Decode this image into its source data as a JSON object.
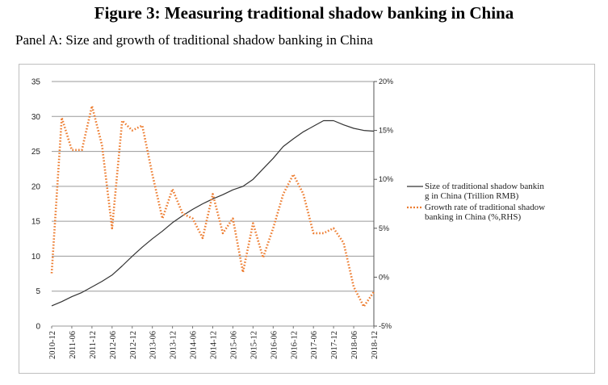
{
  "figure_title": "Figure 3: Measuring traditional shadow banking in China",
  "panel_title": "Panel A: Size and growth of traditional shadow banking in China",
  "chart_data": {
    "type": "line",
    "x": [
      "2010-12",
      "2011-03",
      "2011-06",
      "2011-09",
      "2011-12",
      "2012-03",
      "2012-06",
      "2012-09",
      "2012-12",
      "2013-03",
      "2013-06",
      "2013-09",
      "2013-12",
      "2014-03",
      "2014-06",
      "2014-09",
      "2014-12",
      "2015-03",
      "2015-06",
      "2015-09",
      "2015-12",
      "2016-03",
      "2016-06",
      "2016-09",
      "2016-12",
      "2017-03",
      "2017-06",
      "2017-09",
      "2017-12",
      "2018-03",
      "2018-06",
      "2018-09",
      "2018-12"
    ],
    "x_tick_labels": [
      "2010-12",
      "2011-06",
      "2011-12",
      "2012-06",
      "2012-12",
      "2013-06",
      "2013-12",
      "2014-06",
      "2014-12",
      "2015-06",
      "2015-12",
      "2016-06",
      "2016-12",
      "2017-06",
      "2017-12",
      "2018-06",
      "2018-12"
    ],
    "series": [
      {
        "name": "Size of traditional shadow bankin g in China (Trillion RMB)",
        "axis": "left",
        "color": "#333333",
        "style": "solid",
        "values": [
          2.9,
          3.5,
          4.2,
          4.8,
          5.6,
          6.4,
          7.3,
          8.6,
          10.0,
          11.3,
          12.5,
          13.6,
          14.8,
          15.8,
          16.7,
          17.5,
          18.2,
          18.8,
          19.5,
          20.0,
          21.0,
          22.5,
          24.0,
          25.7,
          26.8,
          27.8,
          28.6,
          29.4,
          29.4,
          28.8,
          28.3,
          28.0,
          27.9
        ],
        "legend_lines": [
          "Size of traditional shadow bankin",
          "g in China (Trillion RMB)"
        ]
      },
      {
        "name": "Growth rate of traditional shadow banking in China (%,RHS)",
        "axis": "right",
        "color": "#ED7D31",
        "style": "dotted",
        "values": [
          0.4,
          16.3,
          13.0,
          13.0,
          17.5,
          13.5,
          5.0,
          16.0,
          15.0,
          15.5,
          10.5,
          6.0,
          9.0,
          6.5,
          6.0,
          4.0,
          8.5,
          4.5,
          6.0,
          0.5,
          5.5,
          2.0,
          5.0,
          8.5,
          10.5,
          8.5,
          4.5,
          4.5,
          5.0,
          3.5,
          -1.0,
          -3.0,
          -1.5
        ],
        "legend_lines": [
          "Growth rate of traditional shadow",
          "banking in China (%,RHS)"
        ]
      }
    ],
    "y_left": {
      "ticks": [
        0,
        5,
        10,
        15,
        20,
        25,
        30,
        35
      ],
      "ylim": [
        0,
        35
      ]
    },
    "y_right": {
      "ticks": [
        "-5%",
        "0%",
        "5%",
        "10%",
        "15%",
        "20%"
      ],
      "values": [
        -5,
        0,
        5,
        10,
        15,
        20
      ],
      "ylim": [
        -5,
        20
      ]
    },
    "grid": "horizontal",
    "legend_position": "right"
  }
}
